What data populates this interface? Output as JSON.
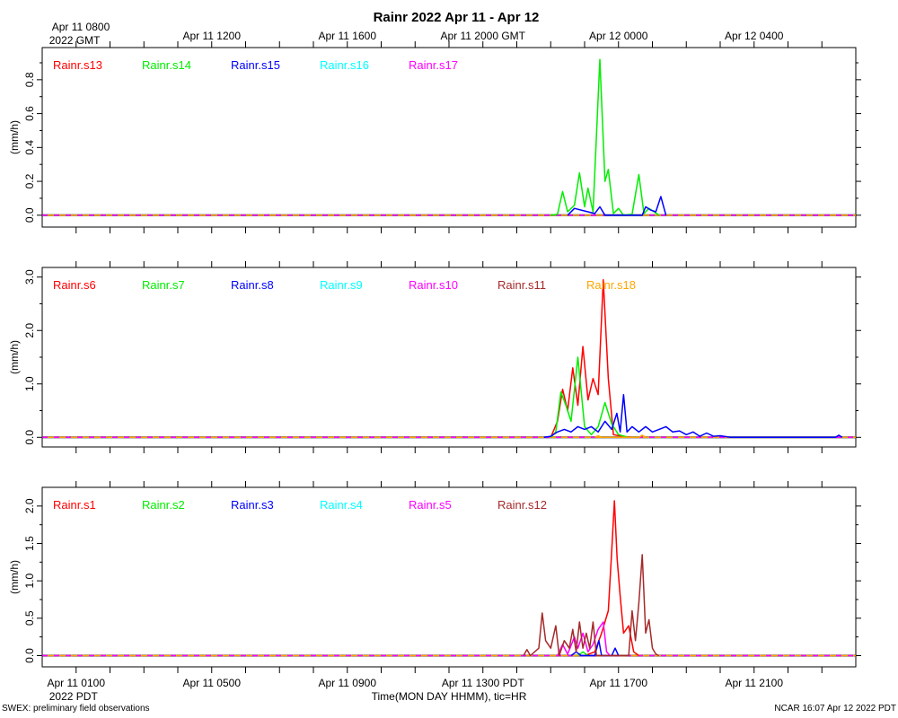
{
  "title": "Rainr 2022 Apr 11 - Apr 12",
  "footer_left": "SWEX: preliminary field observations",
  "footer_right": "NCAR 16:07 Apr 12 2022 PDT",
  "xlabel": "Time(MON DAY HHMM), tic=HR",
  "top_axis": {
    "ticks": [
      {
        "h": 0,
        "label": "Apr 11 0800",
        "label2": "2022 GMT"
      },
      {
        "h": 4,
        "label": "Apr 11 1200"
      },
      {
        "h": 8,
        "label": "Apr 11 1600"
      },
      {
        "h": 12,
        "label": "Apr 11 2000 GMT"
      },
      {
        "h": 16,
        "label": "Apr 12 0000"
      },
      {
        "h": 20,
        "label": "Apr 12 0400"
      }
    ]
  },
  "bottom_axis": {
    "ticks": [
      {
        "h": 0,
        "label": "Apr 11 0100",
        "label2": "2022 PDT"
      },
      {
        "h": 4,
        "label": "Apr 11 0500"
      },
      {
        "h": 8,
        "label": "Apr 11 0900"
      },
      {
        "h": 12,
        "label": "Apr 11 1300 PDT"
      },
      {
        "h": 16,
        "label": "Apr 11 1700"
      },
      {
        "h": 20,
        "label": "Apr 11 2100"
      }
    ]
  },
  "chart_data": [
    {
      "type": "line",
      "ylabel": "(mm/h)",
      "ylim": [
        -0.07,
        0.99
      ],
      "yticks": [
        0.0,
        0.2,
        0.4,
        0.6,
        0.8
      ],
      "yticklabels": [
        "0.0",
        "0.2",
        "0.4",
        "0.6",
        "0.8"
      ],
      "series": [
        {
          "name": "Rainr.s13",
          "color": "#ff0000",
          "points": []
        },
        {
          "name": "Rainr.s14",
          "color": "#00ee00",
          "points": [
            [
              14.0,
              0.0
            ],
            [
              14.2,
              0.005
            ],
            [
              14.35,
              0.14
            ],
            [
              14.5,
              0.02
            ],
            [
              14.7,
              0.06
            ],
            [
              14.85,
              0.25
            ],
            [
              15.0,
              0.05
            ],
            [
              15.1,
              0.16
            ],
            [
              15.25,
              0.02
            ],
            [
              15.45,
              0.92
            ],
            [
              15.6,
              0.2
            ],
            [
              15.7,
              0.27
            ],
            [
              15.85,
              0.01
            ],
            [
              16.0,
              0.04
            ],
            [
              16.15,
              0.0
            ],
            [
              16.4,
              0.005
            ],
            [
              16.6,
              0.24
            ],
            [
              16.75,
              0.01
            ],
            [
              16.9,
              0.04
            ],
            [
              17.2,
              0.0
            ]
          ]
        },
        {
          "name": "Rainr.s15",
          "color": "#0000ff",
          "points": [
            [
              14.5,
              0.0
            ],
            [
              14.7,
              0.04
            ],
            [
              14.9,
              0.03
            ],
            [
              15.1,
              0.02
            ],
            [
              15.3,
              0.01
            ],
            [
              15.45,
              0.05
            ],
            [
              15.6,
              0.0
            ],
            [
              16.7,
              0.0
            ],
            [
              16.8,
              0.05
            ],
            [
              16.95,
              0.03
            ],
            [
              17.1,
              0.02
            ],
            [
              17.25,
              0.11
            ],
            [
              17.4,
              0.0
            ]
          ]
        },
        {
          "name": "Rainr.s16",
          "color": "#00ffff",
          "points": []
        },
        {
          "name": "Rainr.s17",
          "color": "#ff00ff",
          "points": []
        }
      ]
    },
    {
      "type": "line",
      "ylabel": "(mm/h)",
      "ylim": [
        -0.18,
        3.18
      ],
      "yticks": [
        0.0,
        1.0,
        2.0,
        3.0
      ],
      "yticklabels": [
        "0.0",
        "1.0",
        "2.0",
        "3.0"
      ],
      "series": [
        {
          "name": "Rainr.s6",
          "color": "#ff0000",
          "points": [
            [
              14.0,
              0.0
            ],
            [
              14.2,
              0.3
            ],
            [
              14.35,
              0.9
            ],
            [
              14.5,
              0.5
            ],
            [
              14.65,
              1.3
            ],
            [
              14.8,
              0.6
            ],
            [
              14.95,
              1.7
            ],
            [
              15.1,
              0.7
            ],
            [
              15.25,
              1.1
            ],
            [
              15.4,
              0.8
            ],
            [
              15.55,
              2.95
            ],
            [
              15.7,
              1.1
            ],
            [
              15.85,
              0.05
            ],
            [
              16.1,
              0.02
            ],
            [
              16.4,
              0.0
            ]
          ]
        },
        {
          "name": "Rainr.s7",
          "color": "#00ee00",
          "points": [
            [
              14.0,
              0.0
            ],
            [
              14.15,
              0.1
            ],
            [
              14.3,
              0.85
            ],
            [
              14.45,
              0.6
            ],
            [
              14.6,
              0.3
            ],
            [
              14.8,
              1.5
            ],
            [
              15.0,
              0.2
            ],
            [
              15.2,
              0.05
            ],
            [
              15.4,
              0.2
            ],
            [
              15.6,
              0.65
            ],
            [
              15.8,
              0.25
            ],
            [
              16.0,
              0.05
            ],
            [
              16.3,
              0.0
            ]
          ]
        },
        {
          "name": "Rainr.s8",
          "color": "#0000ff",
          "points": [
            [
              13.8,
              0.0
            ],
            [
              14.0,
              0.02
            ],
            [
              14.2,
              0.1
            ],
            [
              14.4,
              0.15
            ],
            [
              14.6,
              0.1
            ],
            [
              14.8,
              0.2
            ],
            [
              15.0,
              0.15
            ],
            [
              15.2,
              0.2
            ],
            [
              15.4,
              0.1
            ],
            [
              15.6,
              0.3
            ],
            [
              15.8,
              0.15
            ],
            [
              15.95,
              0.45
            ],
            [
              16.05,
              0.1
            ],
            [
              16.15,
              0.8
            ],
            [
              16.25,
              0.1
            ],
            [
              16.4,
              0.2
            ],
            [
              16.6,
              0.1
            ],
            [
              16.8,
              0.2
            ],
            [
              17.0,
              0.1
            ],
            [
              17.2,
              0.15
            ],
            [
              17.4,
              0.2
            ],
            [
              17.6,
              0.1
            ],
            [
              17.8,
              0.12
            ],
            [
              18.0,
              0.05
            ],
            [
              18.2,
              0.1
            ],
            [
              18.4,
              0.02
            ],
            [
              18.6,
              0.08
            ],
            [
              18.8,
              0.02
            ],
            [
              19.0,
              0.03
            ],
            [
              19.3,
              0.0
            ],
            [
              22.4,
              0.0
            ],
            [
              22.5,
              0.04
            ],
            [
              22.6,
              0.0
            ]
          ]
        },
        {
          "name": "Rainr.s9",
          "color": "#00ffff",
          "points": []
        },
        {
          "name": "Rainr.s10",
          "color": "#ff00ff",
          "points": []
        },
        {
          "name": "Rainr.s11",
          "color": "#a52a2a",
          "points": []
        },
        {
          "name": "Rainr.s18",
          "color": "#ffa500",
          "points": [
            [
              15.3,
              0.0
            ],
            [
              15.4,
              0.03
            ],
            [
              15.5,
              0.0
            ],
            [
              16.6,
              0.0
            ],
            [
              16.7,
              0.04
            ],
            [
              16.8,
              0.0
            ]
          ]
        }
      ]
    },
    {
      "type": "line",
      "ylabel": "(mm/h)",
      "ylim": [
        -0.15,
        2.25
      ],
      "yticks": [
        0.0,
        0.5,
        1.0,
        1.5,
        2.0
      ],
      "yticklabels": [
        "0.0",
        "0.5",
        "1.0",
        "1.5",
        "2.0"
      ],
      "series": [
        {
          "name": "Rainr.s1",
          "color": "#ff0000",
          "points": [
            [
              15.0,
              0.0
            ],
            [
              15.3,
              0.05
            ],
            [
              15.5,
              0.3
            ],
            [
              15.7,
              0.6
            ],
            [
              15.8,
              1.4
            ],
            [
              15.88,
              2.07
            ],
            [
              15.96,
              1.3
            ],
            [
              16.05,
              0.8
            ],
            [
              16.15,
              0.3
            ],
            [
              16.3,
              0.4
            ],
            [
              16.45,
              0.05
            ],
            [
              16.6,
              0.0
            ]
          ]
        },
        {
          "name": "Rainr.s2",
          "color": "#00ee00",
          "points": [
            [
              14.8,
              0.0
            ],
            [
              14.95,
              0.05
            ],
            [
              15.1,
              0.0
            ]
          ]
        },
        {
          "name": "Rainr.s3",
          "color": "#0000ff",
          "points": [
            [
              14.6,
              0.0
            ],
            [
              14.75,
              0.05
            ],
            [
              14.9,
              0.0
            ],
            [
              15.3,
              0.0
            ],
            [
              15.42,
              0.2
            ],
            [
              15.5,
              0.0
            ],
            [
              15.8,
              0.0
            ],
            [
              15.9,
              0.1
            ],
            [
              16.0,
              0.0
            ]
          ]
        },
        {
          "name": "Rainr.s4",
          "color": "#00ffff",
          "points": []
        },
        {
          "name": "Rainr.s5",
          "color": "#ff00ff",
          "points": [
            [
              14.2,
              0.0
            ],
            [
              14.35,
              0.15
            ],
            [
              14.5,
              0.02
            ],
            [
              14.7,
              0.25
            ],
            [
              14.8,
              0.1
            ],
            [
              14.95,
              0.3
            ],
            [
              15.1,
              0.05
            ],
            [
              15.25,
              0.15
            ],
            [
              15.4,
              0.35
            ],
            [
              15.55,
              0.45
            ],
            [
              15.65,
              0.05
            ],
            [
              15.75,
              0.0
            ]
          ]
        },
        {
          "name": "Rainr.s12",
          "color": "#a52a2a",
          "points": [
            [
              13.2,
              0.0
            ],
            [
              13.3,
              0.08
            ],
            [
              13.4,
              0.0
            ],
            [
              13.65,
              0.1
            ],
            [
              13.75,
              0.57
            ],
            [
              13.85,
              0.2
            ],
            [
              14.0,
              0.1
            ],
            [
              14.15,
              0.4
            ],
            [
              14.25,
              0.0
            ],
            [
              14.4,
              0.2
            ],
            [
              14.55,
              0.1
            ],
            [
              14.65,
              0.35
            ],
            [
              14.75,
              0.05
            ],
            [
              14.85,
              0.45
            ],
            [
              14.95,
              0.1
            ],
            [
              15.05,
              0.3
            ],
            [
              15.15,
              0.1
            ],
            [
              15.25,
              0.45
            ],
            [
              15.35,
              0.0
            ],
            [
              16.3,
              0.0
            ],
            [
              16.4,
              0.6
            ],
            [
              16.5,
              0.2
            ],
            [
              16.6,
              0.7
            ],
            [
              16.7,
              1.35
            ],
            [
              16.8,
              0.3
            ],
            [
              16.9,
              0.48
            ],
            [
              17.0,
              0.1
            ],
            [
              17.1,
              0.02
            ],
            [
              17.2,
              0.0
            ]
          ]
        }
      ]
    }
  ]
}
